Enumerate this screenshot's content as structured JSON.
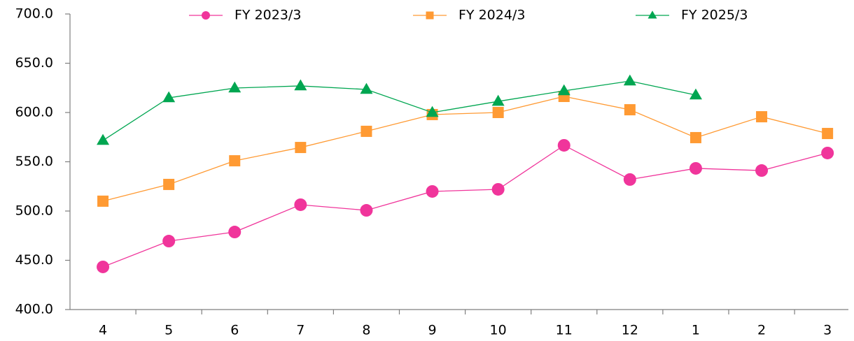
{
  "chart_data": {
    "type": "line",
    "categories": [
      "4",
      "5",
      "6",
      "7",
      "8",
      "9",
      "10",
      "11",
      "12",
      "1",
      "2",
      "3"
    ],
    "series": [
      {
        "name": "FY 2023/3",
        "color": "#f0359b",
        "marker": "circle",
        "values": [
          443.3,
          469.5,
          478.7,
          506.4,
          500.7,
          519.9,
          522,
          566.7,
          532,
          543.3,
          541.1,
          558.9
        ]
      },
      {
        "name": "FY 2024/3",
        "color": "#ff9a33",
        "marker": "square",
        "values": [
          510,
          527,
          551,
          564.5,
          580.9,
          597.9,
          600,
          616.3,
          602.8,
          574.5,
          595.7,
          578.7
        ]
      },
      {
        "name": "FY 2025/3",
        "color": "#00a651",
        "marker": "triangle",
        "values": [
          571.6,
          614.9,
          624.8,
          627,
          623.4,
          600,
          611.3,
          622,
          631.9,
          617.7,
          null,
          null
        ]
      }
    ],
    "ylim": [
      400,
      700
    ],
    "yticks": [
      {
        "value": 400,
        "label": "400.0"
      },
      {
        "value": 450,
        "label": "450.0"
      },
      {
        "value": 500,
        "label": "500.0"
      },
      {
        "value": 550,
        "label": "550.0"
      },
      {
        "value": 600,
        "label": "600.0"
      },
      {
        "value": 650,
        "label": "650.0"
      },
      {
        "value": 700,
        "label": "700.0"
      }
    ],
    "grid": false,
    "legend": "top"
  }
}
